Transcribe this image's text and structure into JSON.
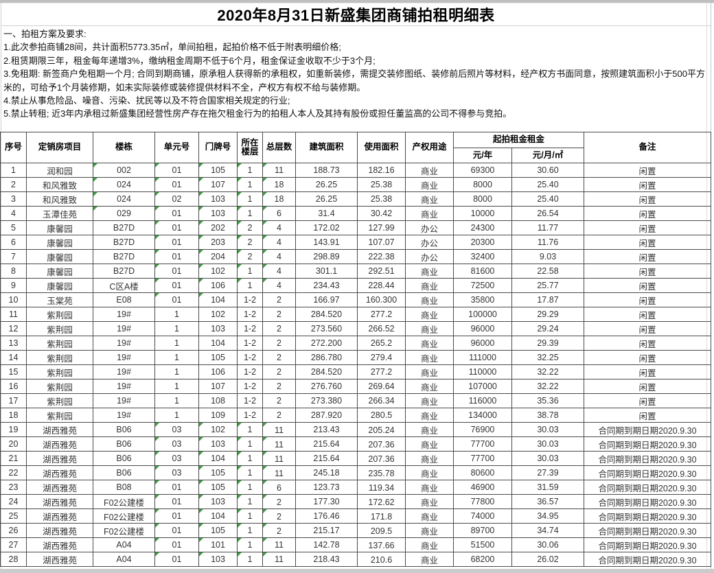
{
  "colors": {
    "flag_green": "#3f9e42",
    "grid_line": "#4a4a4a",
    "chrome_gray": "#bfbfbf",
    "text": "#333333"
  },
  "title": "2020年8月31日新盛集团商铺拍租明细表",
  "requirements": {
    "heading": "一、拍租方案及要求:",
    "items": [
      "1.此次参拍商铺28间，共计面积5773.35㎡，单间拍租，起拍价格不低于附表明细价格;",
      "2.租赁期限三年，租金每年递增3%，缴纳租金周期不低于6个月，租金保证金收取不少于3个月;",
      "3.免租期: 新签商户免租期一个月; 合同到期商铺，原承租人获得新的承租权，如重新装修，需提交装修图纸、装修前后照片等材料，经产权方书面同意，按照建筑面积小于500平方米的，可给予1个月装修期，如未实际装修或装修提供材料不全，产权方有权不给与装修期。",
      "4.禁止从事危险品、噪音、污染、扰民等以及不符合国家相关规定的行业;",
      "5.禁止转租; 近3年内承租过新盛集团经营性房产存在拖欠租金行为的拍租人本人及其持有股份或担任董监高的公司不得参与竞拍。"
    ]
  },
  "table": {
    "headers": {
      "no": "序号",
      "project": "定销房项目",
      "building": "楼栋",
      "unit": "单元号",
      "door": "门牌号",
      "floor": "所在楼层",
      "floors": "总层数",
      "area": "建筑面积",
      "usable": "使用面积",
      "use": "产权用途",
      "rent_group": "起拍租金租金",
      "rent_year": "元/年",
      "rent_month": "元/月/㎡",
      "note": "备注"
    },
    "rows": [
      {
        "n": "1",
        "p": "润和园",
        "b": "002",
        "u": "01",
        "d": "105",
        "f": "1",
        "t": "11",
        "a": "188.73",
        "ua": "182.16",
        "use": "商业",
        "ry": "69300",
        "rm": "30.60",
        "note": "闲置",
        "flags": [
          "b",
          "u",
          "d",
          "f",
          "t"
        ]
      },
      {
        "n": "2",
        "p": "和风雅致",
        "b": "024",
        "u": "01",
        "d": "107",
        "f": "1",
        "t": "18",
        "a": "26.25",
        "ua": "25.38",
        "use": "商业",
        "ry": "8000",
        "rm": "25.40",
        "note": "闲置",
        "flags": [
          "b",
          "u",
          "d",
          "f",
          "t"
        ]
      },
      {
        "n": "3",
        "p": "和风雅致",
        "b": "024",
        "u": "02",
        "d": "103",
        "f": "1",
        "t": "18",
        "a": "26.25",
        "ua": "25.38",
        "use": "商业",
        "ry": "8000",
        "rm": "25.40",
        "note": "闲置",
        "flags": [
          "b",
          "u",
          "d",
          "f",
          "t"
        ]
      },
      {
        "n": "4",
        "p": "玉潭佳苑",
        "b": "029",
        "u": "01",
        "d": "103",
        "f": "1",
        "t": "6",
        "a": "31.4",
        "ua": "30.42",
        "use": "商业",
        "ry": "10000",
        "rm": "26.54",
        "note": "闲置",
        "flags": [
          "b",
          "u",
          "d",
          "f",
          "t"
        ]
      },
      {
        "n": "5",
        "p": "康馨园",
        "b": "B27D",
        "u": "01",
        "d": "202",
        "f": "2",
        "t": "4",
        "a": "172.02",
        "ua": "127.99",
        "use": "办公",
        "ry": "24300",
        "rm": "11.77",
        "note": "闲置",
        "flags": [
          "u",
          "d",
          "f",
          "t"
        ]
      },
      {
        "n": "6",
        "p": "康馨园",
        "b": "B27D",
        "u": "01",
        "d": "203",
        "f": "2",
        "t": "4",
        "a": "143.91",
        "ua": "107.07",
        "use": "办公",
        "ry": "20300",
        "rm": "11.76",
        "note": "闲置",
        "flags": [
          "u",
          "d",
          "f",
          "t"
        ]
      },
      {
        "n": "7",
        "p": "康馨园",
        "b": "B27D",
        "u": "01",
        "d": "204",
        "f": "2",
        "t": "4",
        "a": "298.89",
        "ua": "222.38",
        "use": "办公",
        "ry": "32400",
        "rm": "9.03",
        "note": "闲置",
        "flags": [
          "u",
          "d",
          "f",
          "t"
        ]
      },
      {
        "n": "8",
        "p": "康馨园",
        "b": "B27D",
        "u": "01",
        "d": "102",
        "f": "1",
        "t": "4",
        "a": "301.1",
        "ua": "292.51",
        "use": "商业",
        "ry": "81600",
        "rm": "22.58",
        "note": "闲置",
        "flags": [
          "u",
          "d",
          "f",
          "t"
        ]
      },
      {
        "n": "9",
        "p": "康馨园",
        "b": "C区A楼",
        "u": "01",
        "d": "106",
        "f": "1",
        "t": "4",
        "a": "234.43",
        "ua": "228.44",
        "use": "商业",
        "ry": "72500",
        "rm": "25.77",
        "note": "闲置",
        "flags": [
          "u",
          "d",
          "f",
          "t"
        ]
      },
      {
        "n": "10",
        "p": "玉棠苑",
        "b": "E08",
        "u": "01",
        "d": "104",
        "f": "1-2",
        "t": "2",
        "a": "166.97",
        "ua": "160.300",
        "use": "商业",
        "ry": "35800",
        "rm": "17.87",
        "note": "闲置",
        "flags": [
          "u",
          "d"
        ],
        "ar": true
      },
      {
        "n": "11",
        "p": "紫荆园",
        "b": "19#",
        "u": "1",
        "d": "102",
        "f": "1-2",
        "t": "2",
        "a": "284.520",
        "ua": "277.2",
        "use": "商业",
        "ry": "100000",
        "rm": "29.29",
        "note": "闲置",
        "flags": []
      },
      {
        "n": "12",
        "p": "紫荆园",
        "b": "19#",
        "u": "1",
        "d": "103",
        "f": "1-2",
        "t": "2",
        "a": "273.560",
        "ua": "266.52",
        "use": "商业",
        "ry": "96000",
        "rm": "29.24",
        "note": "闲置",
        "flags": []
      },
      {
        "n": "13",
        "p": "紫荆园",
        "b": "19#",
        "u": "1",
        "d": "104",
        "f": "1-2",
        "t": "2",
        "a": "272.200",
        "ua": "265.2",
        "use": "商业",
        "ry": "96000",
        "rm": "29.39",
        "note": "闲置",
        "flags": []
      },
      {
        "n": "14",
        "p": "紫荆园",
        "b": "19#",
        "u": "1",
        "d": "105",
        "f": "1-2",
        "t": "2",
        "a": "286.780",
        "ua": "279.4",
        "use": "商业",
        "ry": "111000",
        "rm": "32.25",
        "note": "闲置",
        "flags": []
      },
      {
        "n": "15",
        "p": "紫荆园",
        "b": "19#",
        "u": "1",
        "d": "106",
        "f": "1-2",
        "t": "2",
        "a": "284.520",
        "ua": "277.2",
        "use": "商业",
        "ry": "110000",
        "rm": "32.22",
        "note": "闲置",
        "flags": []
      },
      {
        "n": "16",
        "p": "紫荆园",
        "b": "19#",
        "u": "1",
        "d": "107",
        "f": "1-2",
        "t": "2",
        "a": "276.760",
        "ua": "269.64",
        "use": "商业",
        "ry": "107000",
        "rm": "32.22",
        "note": "闲置",
        "flags": []
      },
      {
        "n": "17",
        "p": "紫荆园",
        "b": "19#",
        "u": "1",
        "d": "108",
        "f": "1-2",
        "t": "2",
        "a": "273.380",
        "ua": "266.34",
        "use": "商业",
        "ry": "116000",
        "rm": "35.36",
        "note": "闲置",
        "flags": []
      },
      {
        "n": "18",
        "p": "紫荆园",
        "b": "19#",
        "u": "1",
        "d": "109",
        "f": "1-2",
        "t": "2",
        "a": "287.920",
        "ua": "280.5",
        "use": "商业",
        "ry": "134000",
        "rm": "38.78",
        "note": "闲置",
        "flags": []
      },
      {
        "n": "19",
        "p": "湖西雅苑",
        "b": "B06",
        "u": "03",
        "d": "102",
        "f": "1",
        "t": "11",
        "a": "213.43",
        "ua": "205.24",
        "use": "商业",
        "ry": "76900",
        "rm": "30.03",
        "note": "合同期到期日期2020.9.30",
        "flags": [
          "u",
          "d",
          "f",
          "t"
        ],
        "low": [
          "ua",
          "t"
        ]
      },
      {
        "n": "20",
        "p": "湖西雅苑",
        "b": "B06",
        "u": "03",
        "d": "103",
        "f": "1",
        "t": "11",
        "a": "215.64",
        "ua": "207.36",
        "use": "商业",
        "ry": "77700",
        "rm": "30.03",
        "note": "合同期到期日期2020.9.30",
        "flags": [
          "u",
          "d",
          "f",
          "t"
        ],
        "low": [
          "ua",
          "t"
        ]
      },
      {
        "n": "21",
        "p": "湖西雅苑",
        "b": "B06",
        "u": "03",
        "d": "104",
        "f": "1",
        "t": "11",
        "a": "215.64",
        "ua": "207.36",
        "use": "商业",
        "ry": "77700",
        "rm": "30.03",
        "note": "合同期到期日期2020.9.30",
        "flags": [
          "u",
          "d",
          "f",
          "t"
        ],
        "low": [
          "ua",
          "t"
        ]
      },
      {
        "n": "22",
        "p": "湖西雅苑",
        "b": "B06",
        "u": "03",
        "d": "105",
        "f": "1",
        "t": "11",
        "a": "245.18",
        "ua": "235.78",
        "use": "商业",
        "ry": "80600",
        "rm": "27.39",
        "note": "合同期到期日期2020.9.30",
        "flags": [
          "u",
          "d",
          "f",
          "t"
        ],
        "low": [
          "ua",
          "t"
        ]
      },
      {
        "n": "23",
        "p": "湖西雅苑",
        "b": "B08",
        "u": "01",
        "d": "105",
        "f": "1",
        "t": "6",
        "a": "123.73",
        "ua": "119.34",
        "use": "商业",
        "ry": "46900",
        "rm": "31.59",
        "note": "合同期到期日期2020.9.30",
        "flags": [
          "u",
          "d",
          "f",
          "t"
        ],
        "low": [
          "ua",
          "t"
        ]
      },
      {
        "n": "24",
        "p": "湖西雅苑",
        "b": "F02公建楼",
        "u": "01",
        "d": "103",
        "f": "1",
        "t": "2",
        "a": "177.30",
        "ua": "172.62",
        "use": "商业",
        "ry": "77800",
        "rm": "36.57",
        "note": "合同期到期日期2020.9.30",
        "flags": [
          "u",
          "d",
          "f",
          "t"
        ],
        "low": [
          "ua",
          "t"
        ]
      },
      {
        "n": "25",
        "p": "湖西雅苑",
        "b": "F02公建楼",
        "u": "01",
        "d": "104",
        "f": "1",
        "t": "2",
        "a": "176.46",
        "ua": "171.8",
        "use": "商业",
        "ry": "74000",
        "rm": "34.95",
        "note": "合同期到期日期2020.9.30",
        "flags": [
          "u",
          "d",
          "f",
          "t"
        ],
        "low": [
          "ua",
          "t"
        ]
      },
      {
        "n": "26",
        "p": "湖西雅苑",
        "b": "F02公建楼",
        "u": "01",
        "d": "105",
        "f": "1",
        "t": "2",
        "a": "215.17",
        "ua": "209.5",
        "use": "商业",
        "ry": "89700",
        "rm": "34.74",
        "note": "合同期到期日期2020.9.30",
        "flags": [
          "u",
          "d",
          "f",
          "t"
        ],
        "low": [
          "ua",
          "t"
        ]
      },
      {
        "n": "27",
        "p": "湖西雅苑",
        "b": "A04",
        "u": "01",
        "d": "101",
        "f": "1",
        "t": "11",
        "a": "142.78",
        "ua": "137.66",
        "use": "商业",
        "ry": "51500",
        "rm": "30.06",
        "note": "合同期到期日期2020.9.30",
        "flags": [
          "u",
          "d",
          "f",
          "t"
        ],
        "low": [
          "ua"
        ]
      },
      {
        "n": "28",
        "p": "湖西雅苑",
        "b": "A04",
        "u": "01",
        "d": "103",
        "f": "1",
        "t": "11",
        "a": "218.43",
        "ua": "210.6",
        "use": "商业",
        "ry": "68200",
        "rm": "26.02",
        "note": "合同期到期日期2020.9.30",
        "flags": [
          "u",
          "d",
          "f",
          "t"
        ],
        "low": [
          "ua"
        ]
      }
    ]
  }
}
